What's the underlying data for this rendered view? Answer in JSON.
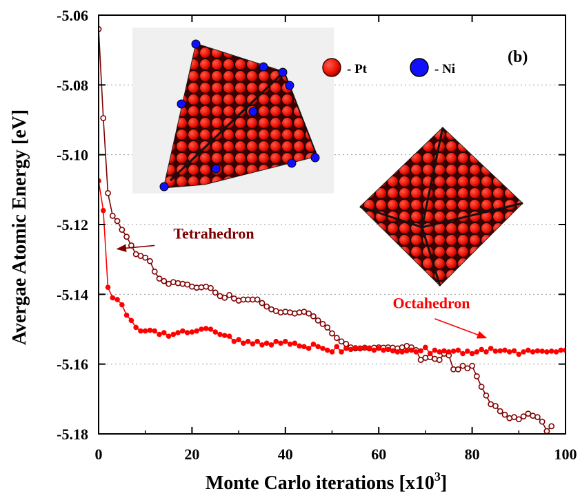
{
  "chart_data": {
    "type": "line",
    "panel_label": "(b)",
    "xlabel": "Monte Carlo iterations [x10",
    "xlabel_sup": "3",
    "xlabel_end": "]",
    "ylabel": "Avergae Atomic Energy [eV]",
    "xlim": [
      0,
      100
    ],
    "ylim": [
      -5.18,
      -5.06
    ],
    "x_ticks": [
      {
        "value": 0,
        "label": "0"
      },
      {
        "value": 20,
        "label": "20"
      },
      {
        "value": 40,
        "label": "40"
      },
      {
        "value": 60,
        "label": "60"
      },
      {
        "value": 80,
        "label": "80"
      },
      {
        "value": 100,
        "label": "100"
      }
    ],
    "y_ticks": [
      {
        "value": -5.06,
        "label": "-5.06"
      },
      {
        "value": -5.08,
        "label": "-5.08"
      },
      {
        "value": -5.1,
        "label": "-5.10"
      },
      {
        "value": -5.12,
        "label": "-5.12"
      },
      {
        "value": -5.14,
        "label": "-5.14"
      },
      {
        "value": -5.16,
        "label": "-5.16"
      },
      {
        "value": -5.18,
        "label": "-5.18"
      }
    ],
    "grid": "dotted horizontal",
    "legend": {
      "placement": "top-right",
      "items": [
        {
          "label": "- Pt",
          "color": "#ff0000"
        },
        {
          "label": "- Ni",
          "color": "#0000ff"
        }
      ]
    },
    "series": [
      {
        "name": "Tetrahedron",
        "color": "#7f0000",
        "marker": "open-circle",
        "label_at": [
          16,
          -5.124
        ],
        "arrow_from": [
          12,
          -5.126
        ],
        "arrow_to": [
          4,
          -5.127
        ],
        "x": [
          0,
          1,
          2,
          3,
          4,
          5,
          6,
          7,
          8,
          9,
          10,
          11,
          12,
          13,
          14,
          15,
          16,
          17,
          18,
          19,
          20,
          21,
          22,
          23,
          24,
          25,
          26,
          27,
          28,
          29,
          30,
          31,
          32,
          33,
          34,
          35,
          36,
          37,
          38,
          39,
          40,
          41,
          42,
          43,
          44,
          45,
          46,
          47,
          48,
          49,
          50,
          51,
          52,
          53,
          54,
          55,
          56,
          57,
          58,
          59,
          60,
          61,
          62,
          63,
          64,
          65,
          66,
          67,
          68,
          69,
          70,
          71,
          72,
          73,
          74,
          75,
          76,
          77,
          78,
          79,
          80,
          81,
          82,
          83,
          84,
          85,
          86,
          87,
          88,
          89,
          90,
          91,
          92,
          93,
          94,
          95,
          96,
          97
        ],
        "y": [
          -5.064,
          -5.0895,
          -5.111,
          -5.1175,
          -5.119,
          -5.1215,
          -5.1235,
          -5.126,
          -5.1285,
          -5.129,
          -5.1295,
          -5.1305,
          -5.1335,
          -5.1355,
          -5.1362,
          -5.137,
          -5.1365,
          -5.1368,
          -5.137,
          -5.1372,
          -5.1378,
          -5.1381,
          -5.138,
          -5.1378,
          -5.1382,
          -5.1395,
          -5.1405,
          -5.141,
          -5.1402,
          -5.1412,
          -5.1418,
          -5.1415,
          -5.1415,
          -5.1415,
          -5.1415,
          -5.1425,
          -5.1435,
          -5.1443,
          -5.1448,
          -5.1452,
          -5.145,
          -5.1452,
          -5.1455,
          -5.1452,
          -5.145,
          -5.1455,
          -5.1463,
          -5.1475,
          -5.1485,
          -5.1495,
          -5.1512,
          -5.1525,
          -5.1535,
          -5.1542,
          -5.1552,
          -5.1555,
          -5.1555,
          -5.1553,
          -5.1555,
          -5.1553,
          -5.1552,
          -5.1553,
          -5.1552,
          -5.1553,
          -5.1555,
          -5.1552,
          -5.1548,
          -5.1552,
          -5.156,
          -5.1588,
          -5.1582,
          -5.158,
          -5.1585,
          -5.1588,
          -5.157,
          -5.1575,
          -5.1615,
          -5.1615,
          -5.1605,
          -5.1612,
          -5.1605,
          -5.1635,
          -5.1665,
          -5.169,
          -5.1715,
          -5.172,
          -5.1735,
          -5.1745,
          -5.1755,
          -5.1752,
          -5.1758,
          -5.175,
          -5.1742,
          -5.1748,
          -5.1752,
          -5.1765,
          -5.1792,
          -5.1778
        ]
      },
      {
        "name": "Octahedron",
        "color": "#ff0000",
        "marker": "filled-circle",
        "label_at": [
          63,
          -5.144
        ],
        "arrow_from": [
          72,
          -5.147
        ],
        "arrow_to": [
          83,
          -5.1525
        ],
        "x": [
          0,
          1,
          2,
          3,
          4,
          5,
          6,
          7,
          8,
          9,
          10,
          11,
          12,
          13,
          14,
          15,
          16,
          17,
          18,
          19,
          20,
          21,
          22,
          23,
          24,
          25,
          26,
          27,
          28,
          29,
          30,
          31,
          32,
          33,
          34,
          35,
          36,
          37,
          38,
          39,
          40,
          41,
          42,
          43,
          44,
          45,
          46,
          47,
          48,
          49,
          50,
          51,
          52,
          53,
          54,
          55,
          56,
          57,
          58,
          59,
          60,
          61,
          62,
          63,
          64,
          65,
          66,
          67,
          68,
          69,
          70,
          71,
          72,
          73,
          74,
          75,
          76,
          77,
          78,
          79,
          80,
          81,
          82,
          83,
          84,
          85,
          86,
          87,
          88,
          89,
          90,
          91,
          92,
          93,
          94,
          95,
          96,
          97,
          98,
          99,
          100
        ],
        "y": [
          -5.1075,
          -5.116,
          -5.138,
          -5.141,
          -5.1415,
          -5.143,
          -5.146,
          -5.1475,
          -5.1495,
          -5.1505,
          -5.1505,
          -5.1503,
          -5.1505,
          -5.1515,
          -5.151,
          -5.152,
          -5.1515,
          -5.151,
          -5.1505,
          -5.151,
          -5.1508,
          -5.1505,
          -5.15,
          -5.1498,
          -5.15,
          -5.1508,
          -5.1515,
          -5.1518,
          -5.152,
          -5.1535,
          -5.153,
          -5.154,
          -5.1535,
          -5.1542,
          -5.1535,
          -5.1545,
          -5.154,
          -5.1545,
          -5.1535,
          -5.154,
          -5.1535,
          -5.1543,
          -5.154,
          -5.1548,
          -5.155,
          -5.1555,
          -5.1543,
          -5.155,
          -5.1555,
          -5.156,
          -5.1565,
          -5.155,
          -5.1565,
          -5.1555,
          -5.1558,
          -5.1553,
          -5.1555,
          -5.1553,
          -5.1555,
          -5.156,
          -5.1555,
          -5.156,
          -5.1558,
          -5.1562,
          -5.1565,
          -5.1565,
          -5.1562,
          -5.156,
          -5.1565,
          -5.1562,
          -5.1552,
          -5.157,
          -5.156,
          -5.1565,
          -5.1562,
          -5.1565,
          -5.1563,
          -5.156,
          -5.157,
          -5.1563,
          -5.157,
          -5.1565,
          -5.1558,
          -5.1565,
          -5.1555,
          -5.1563,
          -5.1562,
          -5.156,
          -5.1565,
          -5.1562,
          -5.1572,
          -5.1565,
          -5.156,
          -5.1565,
          -5.1562,
          -5.1563,
          -5.1565,
          -5.1563,
          -5.1565,
          -5.156,
          -5.156
        ]
      }
    ]
  }
}
